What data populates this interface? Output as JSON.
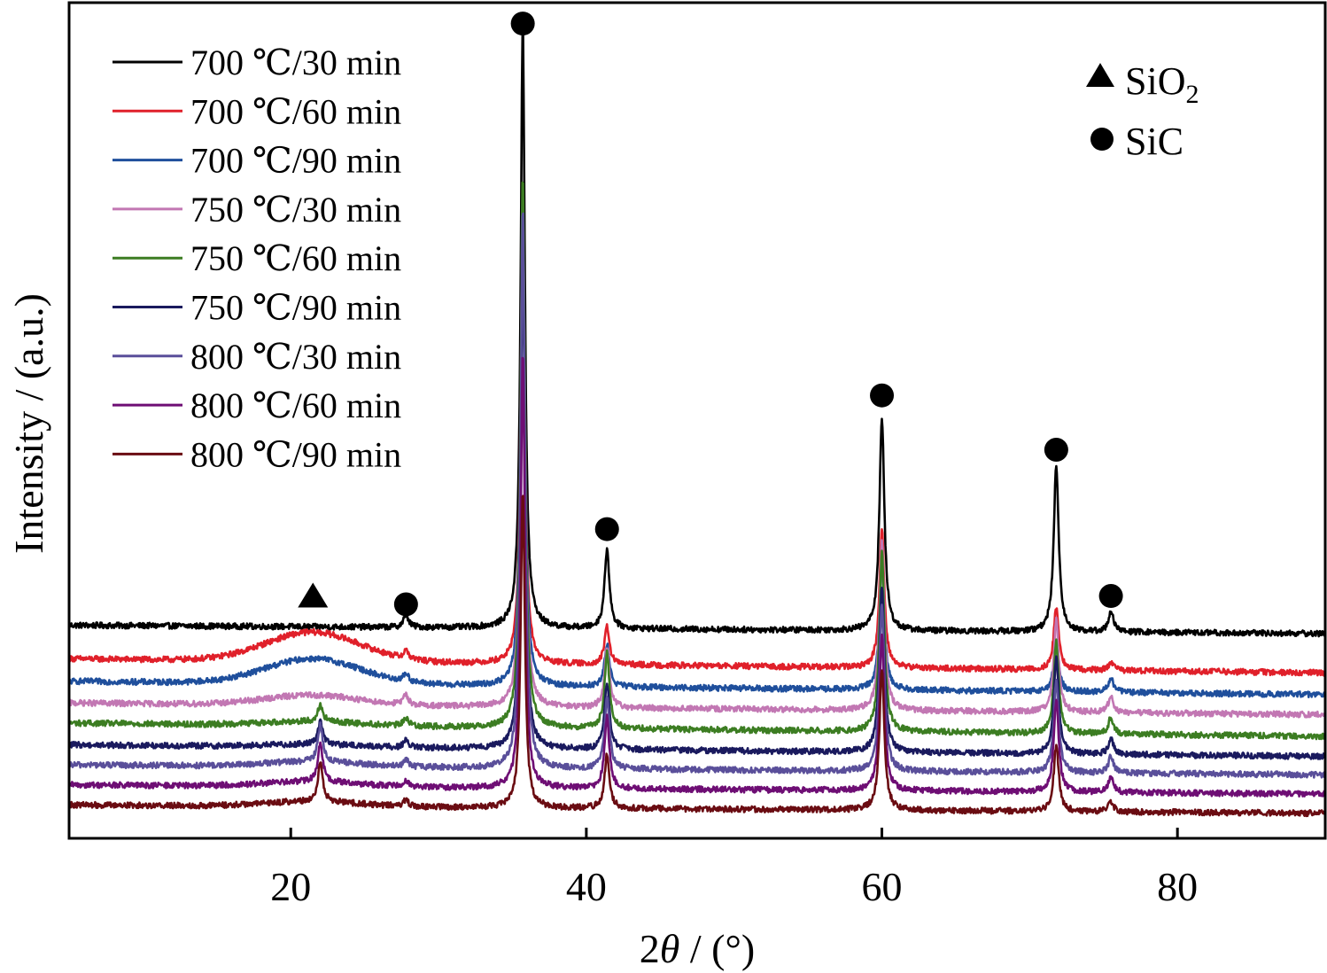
{
  "chart_data": {
    "type": "line",
    "xlabel_prefix": "2",
    "xlabel_var": "θ",
    "xlabel_suffix": " / (°)",
    "ylabel": "Intensity / (a.u.)",
    "xlim": [
      5,
      90
    ],
    "ylim": [
      0,
      1
    ],
    "x_ticks": [
      20,
      40,
      60,
      80
    ],
    "x_tick_labels": [
      "20",
      "40",
      "60",
      "80"
    ],
    "y_ticks_shown": false,
    "grid": false,
    "legend_position": "top-left",
    "phase_legend_position": "top-right",
    "phase_legend": [
      {
        "symbol": "triangle",
        "label_main": "SiO",
        "label_sub": "2"
      },
      {
        "symbol": "circle",
        "label_main": "SiC",
        "label_sub": ""
      }
    ],
    "peak_markers": [
      {
        "phase": "SiO2",
        "symbol": "triangle",
        "x": 21.5,
        "y": 0.29
      },
      {
        "phase": "SiC",
        "symbol": "circle",
        "x": 27.8,
        "y": 0.28
      },
      {
        "phase": "SiC",
        "symbol": "circle",
        "x": 35.7,
        "y": 0.975
      },
      {
        "phase": "SiC",
        "symbol": "circle",
        "x": 41.4,
        "y": 0.37
      },
      {
        "phase": "SiC",
        "symbol": "circle",
        "x": 60.0,
        "y": 0.53
      },
      {
        "phase": "SiC",
        "symbol": "circle",
        "x": 71.8,
        "y": 0.465
      },
      {
        "phase": "SiC",
        "symbol": "circle",
        "x": 75.5,
        "y": 0.29
      }
    ],
    "series": [
      {
        "name": "700 ℃/30 min",
        "color": "#000000",
        "baseline_start": 0.255,
        "baseline_end": 0.245,
        "amorphous_hump": 0.0,
        "peaks": [
          {
            "x": 27.8,
            "h": 0.015
          },
          {
            "x": 35.7,
            "h": 0.72
          },
          {
            "x": 41.4,
            "h": 0.095
          },
          {
            "x": 60.0,
            "h": 0.255
          },
          {
            "x": 71.8,
            "h": 0.2
          },
          {
            "x": 75.5,
            "h": 0.025
          }
        ]
      },
      {
        "name": "700 ℃/60 min",
        "color": "#e0202a",
        "baseline_start": 0.215,
        "baseline_end": 0.198,
        "amorphous_hump": 0.035,
        "peaks": [
          {
            "x": 27.8,
            "h": 0.01
          },
          {
            "x": 35.7,
            "h": 0.55
          },
          {
            "x": 41.4,
            "h": 0.045
          },
          {
            "x": 60.0,
            "h": 0.165
          },
          {
            "x": 71.8,
            "h": 0.075
          },
          {
            "x": 75.5,
            "h": 0.01
          }
        ]
      },
      {
        "name": "700 ℃/90 min",
        "color": "#1f4f9c",
        "baseline_start": 0.188,
        "baseline_end": 0.172,
        "amorphous_hump": 0.03,
        "peaks": [
          {
            "x": 27.8,
            "h": 0.01
          },
          {
            "x": 35.7,
            "h": 0.59
          },
          {
            "x": 41.4,
            "h": 0.05
          },
          {
            "x": 60.0,
            "h": 0.155
          },
          {
            "x": 71.8,
            "h": 0.06
          },
          {
            "x": 75.5,
            "h": 0.018
          }
        ]
      },
      {
        "name": "750 ℃/30 min",
        "color": "#c277b3",
        "baseline_start": 0.162,
        "baseline_end": 0.148,
        "amorphous_hump": 0.012,
        "peaks": [
          {
            "x": 27.8,
            "h": 0.012
          },
          {
            "x": 35.7,
            "h": 0.6
          },
          {
            "x": 41.4,
            "h": 0.07
          },
          {
            "x": 60.0,
            "h": 0.205
          },
          {
            "x": 71.8,
            "h": 0.11
          },
          {
            "x": 75.5,
            "h": 0.02
          }
        ]
      },
      {
        "name": "750 ℃/60 min",
        "color": "#3c7d22",
        "baseline_start": 0.138,
        "baseline_end": 0.122,
        "amorphous_hump": 0.005,
        "peaks": [
          {
            "x": 22.0,
            "h": 0.02
          },
          {
            "x": 27.8,
            "h": 0.01
          },
          {
            "x": 35.7,
            "h": 0.66
          },
          {
            "x": 41.4,
            "h": 0.09
          },
          {
            "x": 60.0,
            "h": 0.215
          },
          {
            "x": 71.8,
            "h": 0.11
          },
          {
            "x": 75.5,
            "h": 0.02
          }
        ]
      },
      {
        "name": "750 ℃/90 min",
        "color": "#1a1a5e",
        "baseline_start": 0.112,
        "baseline_end": 0.098,
        "amorphous_hump": 0.003,
        "peaks": [
          {
            "x": 22.0,
            "h": 0.028
          },
          {
            "x": 27.8,
            "h": 0.008
          },
          {
            "x": 35.7,
            "h": 0.59
          },
          {
            "x": 41.4,
            "h": 0.08
          },
          {
            "x": 60.0,
            "h": 0.2
          },
          {
            "x": 71.8,
            "h": 0.115
          },
          {
            "x": 75.5,
            "h": 0.02
          }
        ]
      },
      {
        "name": "800 ℃/30 min",
        "color": "#5a4f9a",
        "baseline_start": 0.088,
        "baseline_end": 0.076,
        "amorphous_hump": 0.006,
        "peaks": [
          {
            "x": 22.0,
            "h": 0.045
          },
          {
            "x": 27.8,
            "h": 0.008
          },
          {
            "x": 35.7,
            "h": 0.67
          },
          {
            "x": 41.4,
            "h": 0.085
          },
          {
            "x": 60.0,
            "h": 0.2
          },
          {
            "x": 71.8,
            "h": 0.11
          },
          {
            "x": 75.5,
            "h": 0.02
          }
        ]
      },
      {
        "name": "800 ℃/60 min",
        "color": "#6e0e74",
        "baseline_start": 0.064,
        "baseline_end": 0.053,
        "amorphous_hump": 0.006,
        "peaks": [
          {
            "x": 22.0,
            "h": 0.045
          },
          {
            "x": 27.8,
            "h": 0.008
          },
          {
            "x": 35.7,
            "h": 0.52
          },
          {
            "x": 41.4,
            "h": 0.085
          },
          {
            "x": 60.0,
            "h": 0.185
          },
          {
            "x": 71.8,
            "h": 0.11
          },
          {
            "x": 75.5,
            "h": 0.018
          }
        ]
      },
      {
        "name": "800 ℃/90 min",
        "color": "#6a0c12",
        "baseline_start": 0.04,
        "baseline_end": 0.03,
        "amorphous_hump": 0.006,
        "peaks": [
          {
            "x": 22.0,
            "h": 0.045
          },
          {
            "x": 27.8,
            "h": 0.008
          },
          {
            "x": 35.7,
            "h": 0.38
          },
          {
            "x": 41.4,
            "h": 0.065
          },
          {
            "x": 60.0,
            "h": 0.17
          },
          {
            "x": 71.8,
            "h": 0.08
          },
          {
            "x": 75.5,
            "h": 0.012
          }
        ]
      }
    ]
  }
}
